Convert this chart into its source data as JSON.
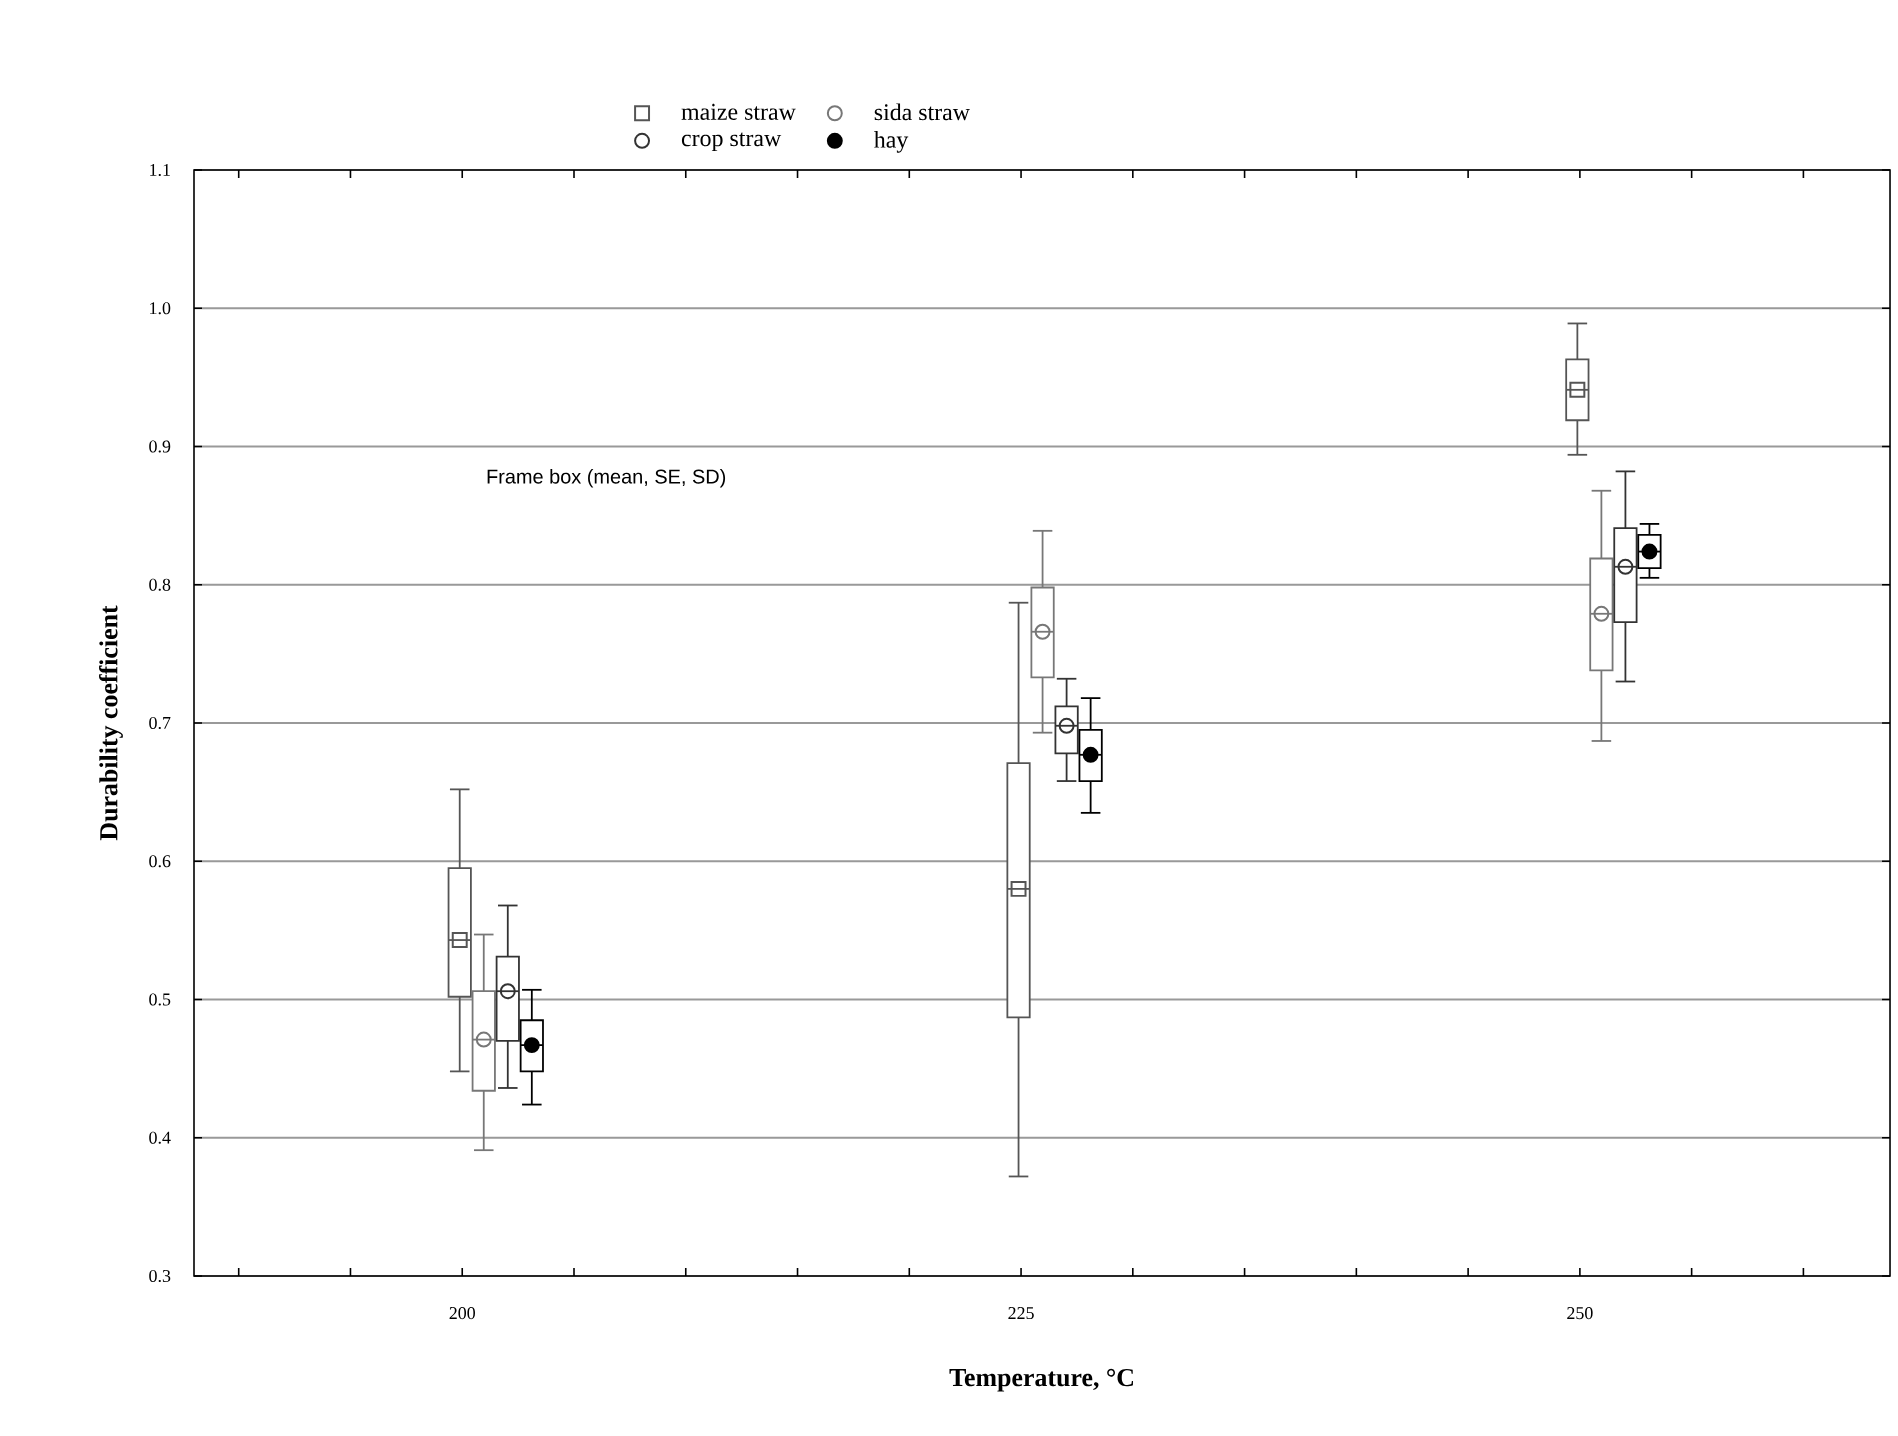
{
  "chart_data": {
    "type": "box",
    "xlabel": "Temperature, °C",
    "ylabel": "Durability coefficient",
    "categories": [
      "200",
      "225",
      "250"
    ],
    "ylim": [
      0.3,
      1.1
    ],
    "yticks": [
      0.3,
      0.4,
      0.5,
      0.6,
      0.7,
      0.8,
      0.9,
      {
        "value": 1.0,
        "label": "1.0"
      },
      {
        "value": 1.1,
        "label": "1.1"
      }
    ],
    "grid": "y",
    "legend": "top",
    "annotations": [
      "Frame box (mean, SE, SD)"
    ],
    "series": [
      {
        "name": "maize straw",
        "color": "#555555",
        "marker": "square",
        "boxes": [
          {
            "low": 0.448,
            "q1": 0.502,
            "median": 0.543,
            "q3": 0.595,
            "high": 0.652,
            "mean": 0.543
          },
          {
            "low": 0.372,
            "q1": 0.487,
            "median": 0.58,
            "q3": 0.671,
            "high": 0.787,
            "mean": 0.58
          },
          {
            "low": 0.894,
            "q1": 0.919,
            "median": 0.941,
            "q3": 0.963,
            "high": 0.989,
            "mean": 0.941
          }
        ]
      },
      {
        "name": "sida straw",
        "color": "#777777",
        "marker": "circle",
        "boxes": [
          {
            "low": 0.391,
            "q1": 0.434,
            "median": 0.471,
            "q3": 0.506,
            "high": 0.547,
            "mean": 0.471
          },
          {
            "low": 0.693,
            "q1": 0.733,
            "median": 0.766,
            "q3": 0.798,
            "high": 0.839,
            "mean": 0.766
          },
          {
            "low": 0.687,
            "q1": 0.738,
            "median": 0.779,
            "q3": 0.819,
            "high": 0.868,
            "mean": 0.779
          }
        ]
      },
      {
        "name": "crop straw",
        "color": "#333333",
        "marker": "circle",
        "boxes": [
          {
            "low": 0.436,
            "q1": 0.47,
            "median": 0.506,
            "q3": 0.531,
            "high": 0.568,
            "mean": 0.506
          },
          {
            "low": 0.658,
            "q1": 0.678,
            "median": 0.698,
            "q3": 0.712,
            "high": 0.732,
            "mean": 0.698
          },
          {
            "low": 0.73,
            "q1": 0.773,
            "median": 0.813,
            "q3": 0.841,
            "high": 0.882,
            "mean": 0.813
          }
        ]
      },
      {
        "name": "hay",
        "color": "#000000",
        "marker": "filled circle",
        "boxes": [
          {
            "low": 0.424,
            "q1": 0.448,
            "median": 0.467,
            "q3": 0.485,
            "high": 0.507,
            "mean": 0.467
          },
          {
            "low": 0.635,
            "q1": 0.658,
            "median": 0.677,
            "q3": 0.695,
            "high": 0.718,
            "mean": 0.677
          },
          {
            "low": 0.805,
            "q1": 0.812,
            "median": 0.824,
            "q3": 0.836,
            "high": 0.844,
            "mean": 0.824
          }
        ]
      }
    ]
  }
}
